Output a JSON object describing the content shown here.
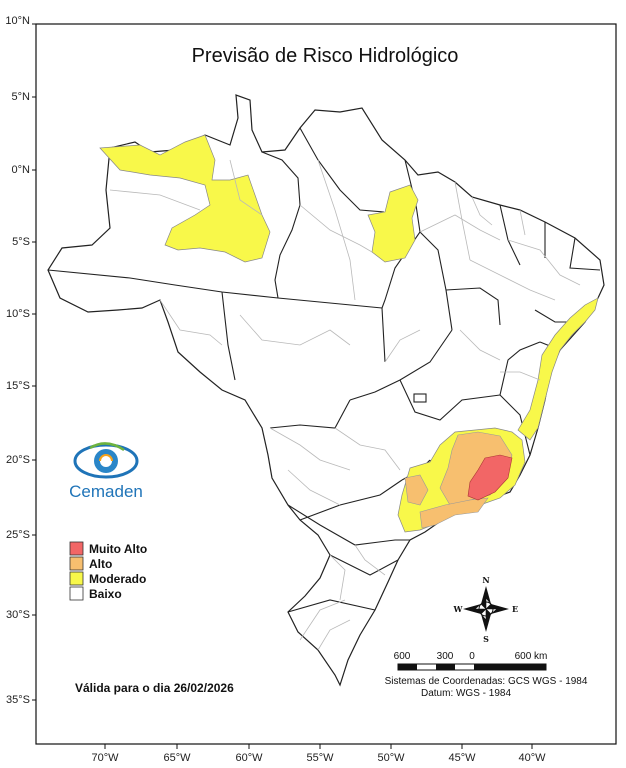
{
  "title": "Previsão de Risco Hidrológico",
  "lat_ticks": [
    "10°N",
    "5°N",
    "0°N",
    "5°S",
    "10°S",
    "15°S",
    "20°S",
    "25°S",
    "30°S",
    "35°S"
  ],
  "lon_ticks": [
    "70°W",
    "65°W",
    "60°W",
    "55°W",
    "50°W",
    "45°W",
    "40°W"
  ],
  "legend": [
    {
      "label": "Muito Alto",
      "color": "#f26666"
    },
    {
      "label": "Alto",
      "color": "#f7bf6f"
    },
    {
      "label": "Moderado",
      "color": "#f8f84a"
    },
    {
      "label": "Baixo",
      "color": "#ffffff"
    }
  ],
  "validity": "Válida para o dia 26/02/2026",
  "logo": {
    "name": "Cemaden",
    "icon": "eye-logo-icon"
  },
  "compass": {
    "north": "N",
    "south": "S",
    "east": "E",
    "west": "W"
  },
  "scale_bar": {
    "labels": [
      "600",
      "300",
      "0",
      "600 km"
    ]
  },
  "crs": {
    "line1": "Sistemas de Coordenadas: GCS WGS - 1984",
    "line2": "Datum: WGS - 1984"
  }
}
